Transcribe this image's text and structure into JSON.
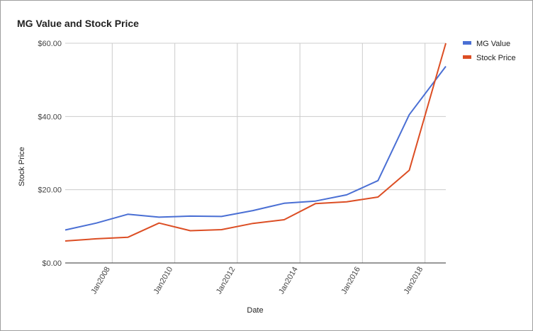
{
  "chart_data": {
    "type": "line",
    "title": "MG Value and Stock Price",
    "xlabel": "Date",
    "ylabel": "Stock Price",
    "x_domain": [
      "2006-07-01",
      "2018-09-01"
    ],
    "ylim": [
      0,
      60
    ],
    "y_ticks": [
      0,
      20,
      40,
      60
    ],
    "y_tick_labels": [
      "$0.00",
      "$20.00",
      "$40.00",
      "$60.00"
    ],
    "x_ticks": [
      "2008-01-01",
      "2010-01-01",
      "2012-01-01",
      "2014-01-01",
      "2016-01-01",
      "2018-01-01"
    ],
    "x_tick_labels": [
      "Jan2008",
      "Jan2010",
      "Jan2012",
      "Jan2014",
      "Jan2016",
      "Jan2018"
    ],
    "grid": true,
    "legend_position": "right",
    "series": [
      {
        "name": "MG Value",
        "color": "#4a6fd4",
        "points": [
          [
            "2006-07-01",
            9.0
          ],
          [
            "2007-07-01",
            10.9
          ],
          [
            "2008-07-01",
            13.3
          ],
          [
            "2009-07-01",
            12.5
          ],
          [
            "2010-07-01",
            12.8
          ],
          [
            "2011-07-01",
            12.7
          ],
          [
            "2012-07-01",
            14.3
          ],
          [
            "2013-07-01",
            16.3
          ],
          [
            "2014-07-01",
            16.9
          ],
          [
            "2015-07-01",
            18.6
          ],
          [
            "2016-07-01",
            22.5
          ],
          [
            "2017-07-01",
            40.5
          ],
          [
            "2018-09-01",
            53.7
          ]
        ]
      },
      {
        "name": "Stock Price",
        "color": "#dc4e24",
        "points": [
          [
            "2006-07-01",
            6.0
          ],
          [
            "2007-07-01",
            6.6
          ],
          [
            "2008-07-01",
            7.0
          ],
          [
            "2009-07-01",
            10.9
          ],
          [
            "2010-07-01",
            8.8
          ],
          [
            "2011-07-01",
            9.1
          ],
          [
            "2012-07-01",
            10.8
          ],
          [
            "2013-07-01",
            11.8
          ],
          [
            "2014-07-01",
            16.2
          ],
          [
            "2015-07-01",
            16.7
          ],
          [
            "2016-07-01",
            18.0
          ],
          [
            "2017-07-01",
            25.3
          ],
          [
            "2018-09-01",
            60.0
          ]
        ]
      }
    ]
  }
}
